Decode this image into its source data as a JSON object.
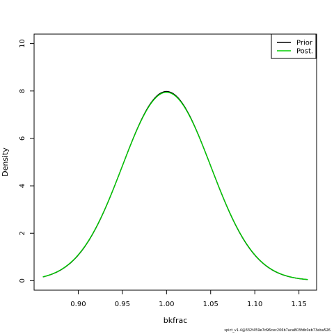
{
  "chart_data": {
    "type": "line",
    "xlabel": "bkfrac",
    "ylabel": "Density",
    "xlim": [
      0.85,
      1.17
    ],
    "ylim": [
      -0.4,
      10.4
    ],
    "xticks": [
      0.9,
      0.95,
      1.0,
      1.05,
      1.1,
      1.15
    ],
    "xtick_labels": [
      "0.90",
      "0.95",
      "1.00",
      "1.05",
      "1.10",
      "1.15"
    ],
    "yticks": [
      0,
      2,
      4,
      6,
      8,
      10
    ],
    "ytick_labels": [
      "0",
      "2",
      "4",
      "6",
      "8",
      "10"
    ],
    "grid": false,
    "legend_position": "top-right",
    "x_range": [
      0.86,
      1.16
    ],
    "series": [
      {
        "name": "Prior",
        "color": "#000000",
        "distribution": "normal",
        "mean": 1.0,
        "sd": 0.05
      },
      {
        "name": "Post.",
        "color": "#00cd00",
        "distribution": "normal",
        "mean": 1.0,
        "sd": 0.0502
      }
    ]
  },
  "footer_text": "spict_v1.4@332f459e7d96cec206b7aca803fdb0eb73eba526"
}
